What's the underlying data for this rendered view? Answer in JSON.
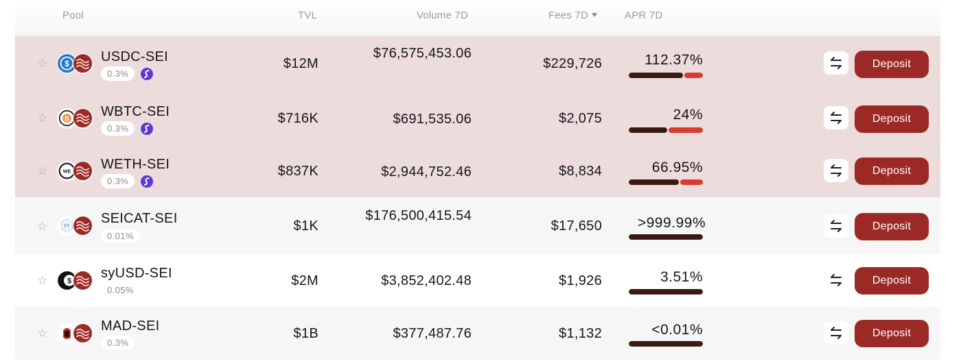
{
  "table": {
    "headers": {
      "pool": "Pool",
      "tvl": "TVL",
      "volume": "Volume 7D",
      "fees": "Fees 7D",
      "apr": "APR 7D"
    },
    "sort_icon": "caret-down-icon",
    "action_label": "Deposit",
    "swap_icon": "swap-arrows-icon",
    "star_icon": "star-outline-icon",
    "rows": [
      {
        "pair": "USDC-SEI",
        "fee": "0.3%",
        "tvl": "$12M",
        "volume": "$76,575,453.06",
        "fees": "$229,726",
        "apr": "112.37%",
        "apr_split": 0.74,
        "chain_icon": "sei-evm-icon",
        "token_icon": "usdc-icon",
        "highlight": true
      },
      {
        "pair": "WBTC-SEI",
        "fee": "0.3%",
        "tvl": "$716K",
        "volume": "$691,535.06",
        "fees": "$2,075",
        "apr": "24%",
        "apr_split": 0.52,
        "chain_icon": "sei-evm-icon",
        "token_icon": "wbtc-icon",
        "highlight": true
      },
      {
        "pair": "WETH-SEI",
        "fee": "0.3%",
        "tvl": "$837K",
        "volume": "$2,944,752.46",
        "fees": "$8,834",
        "apr": "66.95%",
        "apr_split": 0.68,
        "chain_icon": "sei-evm-icon",
        "token_icon": "weth-icon",
        "highlight": true
      },
      {
        "pair": "SEICAT-SEI",
        "fee": "0.01%",
        "tvl": "$1K",
        "volume": "$176,500,415.54",
        "fees": "$17,650",
        "apr": ">999.99%",
        "apr_split": 1,
        "token_icon": "seicat-icon",
        "highlight": false
      },
      {
        "pair": "syUSD-SEI",
        "fee": "0.05%",
        "tvl": "$2M",
        "volume": "$3,852,402.48",
        "fees": "$1,926",
        "apr": "3.51%",
        "apr_split": 1,
        "token_icon": "syusd-icon",
        "highlight": false
      },
      {
        "pair": "MAD-SEI",
        "fee": "0.3%",
        "tvl": "$1B",
        "volume": "$377,487.76",
        "fees": "$1,132",
        "apr": "<0.01%",
        "apr_split": 1,
        "token_icon": "mad-icon",
        "highlight": false
      }
    ]
  },
  "colors": {
    "highlight_row": "#ecdcdc",
    "deposit_button": "#9b2a26",
    "apr_bar_dark": "#3a1a12",
    "apr_bar_red": "#d93b2e",
    "sei_brand": "#9b2a26",
    "chain_badge": "#5b3ad6"
  }
}
